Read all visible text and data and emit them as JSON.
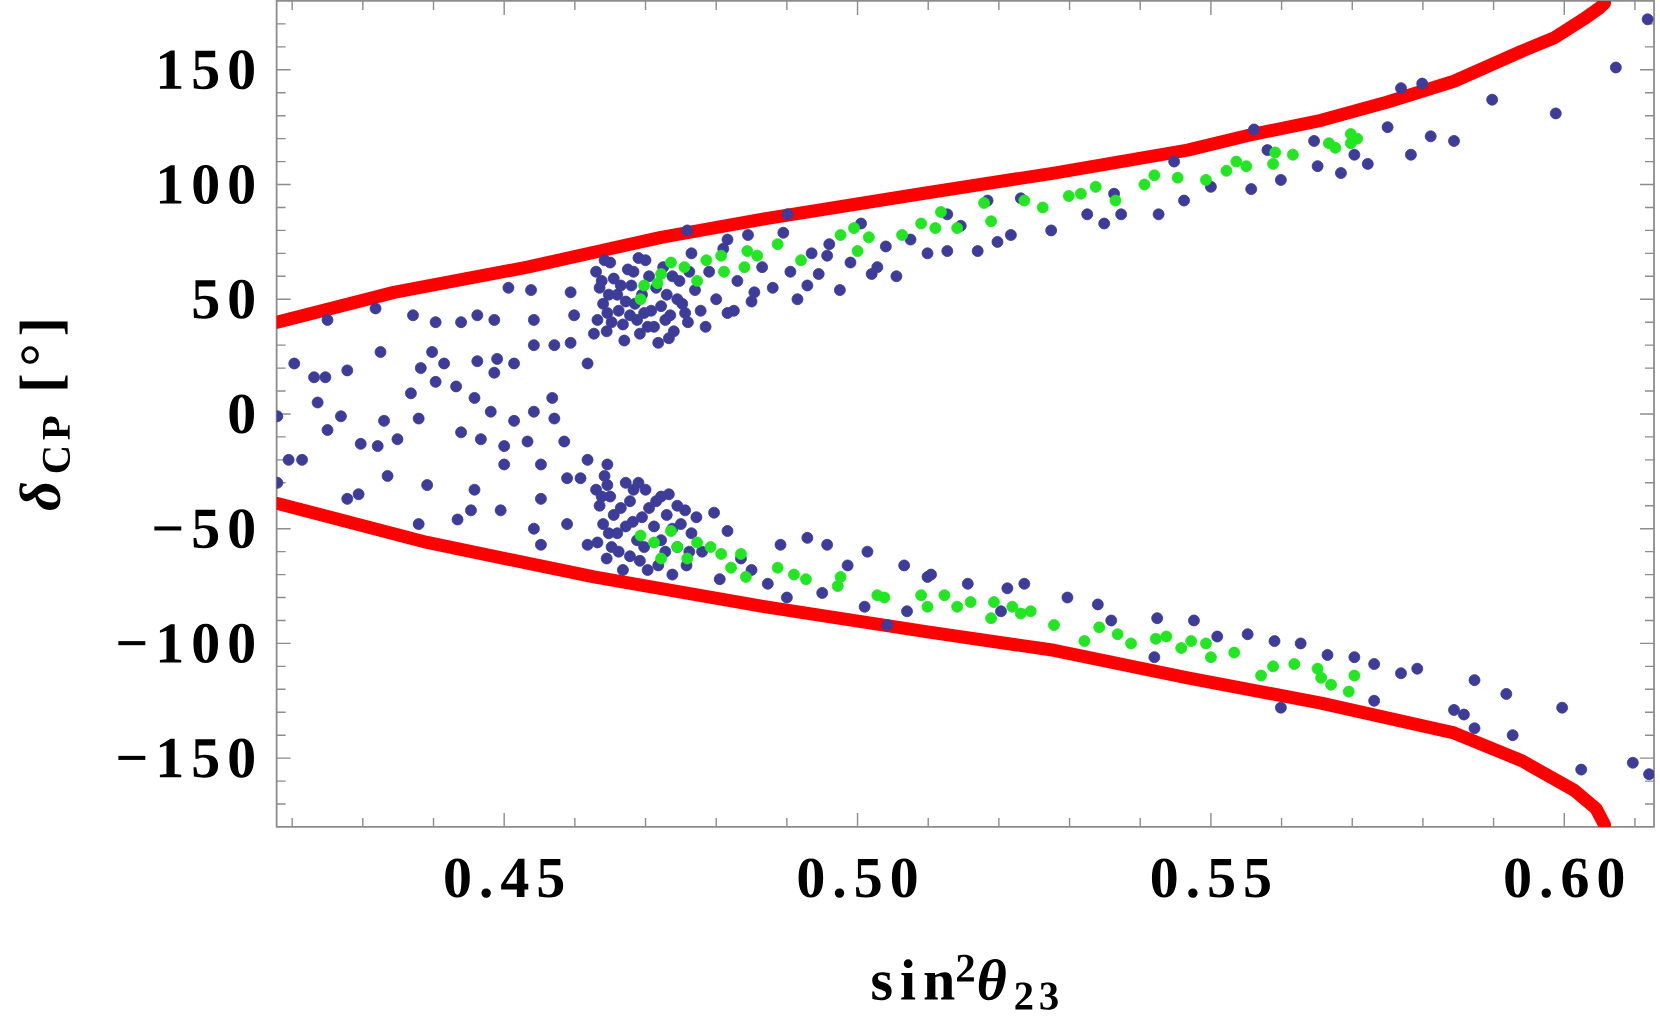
{
  "chart_data": {
    "type": "scatter",
    "xlabel": "sin$^{2}$*θ*$_{23}$",
    "ylabel": "*δ*$_{CP}$ [°]",
    "xlim": [
      0.4178,
      0.6127
    ],
    "ylim": [
      -180,
      180
    ],
    "xticks": [
      {
        "value": 0.42,
        "label": null
      },
      {
        "value": 0.43,
        "label": null
      },
      {
        "value": 0.44,
        "label": null
      },
      0.45,
      {
        "value": 0.46,
        "label": null
      },
      {
        "value": 0.47,
        "label": null
      },
      {
        "value": 0.48,
        "label": null
      },
      {
        "value": 0.49,
        "label": null
      },
      {
        "value": 0.5,
        "label": "0.50"
      },
      {
        "value": 0.51,
        "label": null
      },
      {
        "value": 0.52,
        "label": null
      },
      {
        "value": 0.53,
        "label": null
      },
      {
        "value": 0.54,
        "label": null
      },
      0.55,
      {
        "value": 0.56,
        "label": null
      },
      {
        "value": 0.57,
        "label": null
      },
      {
        "value": 0.58,
        "label": null
      },
      {
        "value": 0.59,
        "label": null
      },
      {
        "value": 0.6,
        "label": "0.60"
      },
      {
        "value": 0.61,
        "label": null
      }
    ],
    "yticks": [
      {
        "value": -170,
        "label": null
      },
      {
        "value": -160,
        "label": null
      },
      {
        "value": -150,
        "label": "−150"
      },
      {
        "value": -140,
        "label": null
      },
      {
        "value": -130,
        "label": null
      },
      {
        "value": -120,
        "label": null
      },
      {
        "value": -110,
        "label": null
      },
      {
        "value": -100,
        "label": "−100"
      },
      {
        "value": -90,
        "label": null
      },
      {
        "value": -80,
        "label": null
      },
      {
        "value": -70,
        "label": null
      },
      {
        "value": -60,
        "label": null
      },
      {
        "value": -50,
        "label": "−50"
      },
      {
        "value": -40,
        "label": null
      },
      {
        "value": -30,
        "label": null
      },
      {
        "value": -20,
        "label": null
      },
      {
        "value": -10,
        "label": null
      },
      0,
      {
        "value": 10,
        "label": null
      },
      {
        "value": 20,
        "label": null
      },
      {
        "value": 30,
        "label": null
      },
      {
        "value": 40,
        "label": null
      },
      50,
      {
        "value": 60,
        "label": null
      },
      {
        "value": 70,
        "label": null
      },
      {
        "value": 80,
        "label": null
      },
      {
        "value": 90,
        "label": null
      },
      100,
      {
        "value": 110,
        "label": null
      },
      {
        "value": 120,
        "label": null
      },
      {
        "value": 130,
        "label": null
      },
      {
        "value": 140,
        "label": null
      },
      150,
      {
        "value": 160,
        "label": null
      },
      {
        "value": 170,
        "label": null
      }
    ],
    "marker": "circle",
    "series": [
      {
        "type": "line",
        "marker": "none",
        "color": "#ff0000",
        "x": [
          0.4179,
          0.4344,
          0.4533,
          0.4722,
          0.4868,
          0.509,
          0.5278,
          0.5467,
          0.5561,
          0.5656,
          0.575,
          0.5844,
          0.5939,
          0.5986,
          0.6027,
          0.605,
          0.6057
        ],
        "values": [
          40,
          53,
          64,
          77,
          85,
          96,
          105,
          115,
          122,
          128,
          136,
          145,
          158,
          164,
          172,
          177,
          179
        ]
      },
      {
        "type": "line",
        "marker": "none",
        "color": "#ff0000",
        "x": [
          0.4179,
          0.4391,
          0.4627,
          0.4868,
          0.5099,
          0.5278,
          0.5467,
          0.5656,
          0.5844,
          0.5939,
          0.6014,
          0.6045,
          0.6057
        ],
        "values": [
          -39,
          -56,
          -71,
          -84,
          -95,
          -103,
          -115,
          -126,
          -139,
          -151,
          -164,
          -172,
          -179
        ]
      },
      {
        "color": "#3d3d99",
        "x": [
          0.425,
          0.4318,
          0.4371,
          0.4403,
          0.4439,
          0.4462,
          0.4486,
          0.4506,
          0.4538,
          0.4594,
          0.4203,
          0.4231,
          0.4247,
          0.4236,
          0.4269,
          0.425,
          0.4179,
          0.4195,
          0.4214,
          0.4179,
          0.4278,
          0.4325,
          0.4382,
          0.4398,
          0.4415,
          0.4403,
          0.4432,
          0.4368,
          0.4379,
          0.433,
          0.4349,
          0.4321,
          0.4297,
          0.4335,
          0.4462,
          0.4486,
          0.449,
          0.4514,
          0.4542,
          0.4571,
          0.4594,
          0.4618,
          0.4458,
          0.4481,
          0.4514,
          0.4542,
          0.4571,
          0.4568,
          0.4439,
          0.4467,
          0.45,
          0.4533,
          0.4552,
          0.4585,
          0.4589,
          0.4618,
          0.4646,
          0.4542,
          0.4599,
          0.4627,
          0.4646,
          0.463,
          0.4635,
          0.464,
          0.4632,
          0.4645,
          0.465,
          0.4655,
          0.466,
          0.4662,
          0.4668,
          0.467,
          0.4675,
          0.468,
          0.4685,
          0.4688,
          0.4692,
          0.47,
          0.4705,
          0.4708,
          0.4712,
          0.4718,
          0.4725,
          0.473,
          0.4735,
          0.474,
          0.4748,
          0.4752,
          0.476,
          0.4765,
          0.477,
          0.4778,
          0.4785,
          0.479,
          0.48,
          0.481,
          0.4825,
          0.483,
          0.4845,
          0.485,
          0.4865,
          0.488,
          0.4895,
          0.4905,
          0.4915,
          0.4935,
          0.4945,
          0.496,
          0.4975,
          0.499,
          0.5005,
          0.502,
          0.504,
          0.5055,
          0.5075,
          0.4816,
          0.4854,
          0.4929,
          0.4957,
          0.5028,
          0.5099,
          0.4901,
          0.4759,
          0.4816,
          0.5127,
          0.517,
          0.5198,
          0.5217,
          0.5274,
          0.5325,
          0.5349,
          0.5373,
          0.5426,
          0.5462,
          0.55,
          0.5557,
          0.5599,
          0.5651,
          0.5684,
          0.5722,
          0.575,
          0.5783,
          0.5811,
          0.5844,
          0.5769,
          0.5799,
          0.5898,
          0.5988,
          0.6073,
          0.6118,
          0.5448,
          0.5561,
          0.558,
          0.5646,
          0.5703,
          0.5231,
          0.5184,
          0.5127,
          0.5363,
          0.5146,
          0.4278,
          0.4294,
          0.4379,
          0.4391,
          0.4434,
          0.4453,
          0.4458,
          0.4495,
          0.45,
          0.4542,
          0.4552,
          0.4552,
          0.4589,
          0.4618,
          0.4608,
          0.4646,
          0.463,
          0.4635,
          0.464,
          0.4632,
          0.4645,
          0.465,
          0.4655,
          0.466,
          0.4662,
          0.4668,
          0.4672,
          0.4678,
          0.4682,
          0.4688,
          0.4692,
          0.47,
          0.4705,
          0.4712,
          0.4718,
          0.4722,
          0.473,
          0.4738,
          0.4745,
          0.475,
          0.4758,
          0.4765,
          0.4772,
          0.478,
          0.4797,
          0.4816,
          0.4835,
          0.4873,
          0.4891,
          0.4929,
          0.4957,
          0.4986,
          0.5014,
          0.5042,
          0.5066,
          0.5099,
          0.4805,
          0.485,
          0.49,
          0.495,
          0.501,
          0.507,
          0.5104,
          0.5156,
          0.5212,
          0.5236,
          0.5203,
          0.5297,
          0.534,
          0.5359,
          0.5424,
          0.5476,
          0.542,
          0.5509,
          0.5552,
          0.559,
          0.5627,
          0.5665,
          0.5703,
          0.5731,
          0.5769,
          0.5792,
          0.5731,
          0.5599,
          0.5844,
          0.5873,
          0.5858,
          0.5873,
          0.5918,
          0.5927,
          0.5997,
          0.6024,
          0.6097,
          0.612,
          0.4638,
          0.4648,
          0.4652,
          0.4665,
          0.4672,
          0.4678,
          0.4683,
          0.4695,
          0.4698,
          0.4703,
          0.4715,
          0.4722,
          0.4728,
          0.4738,
          0.4745,
          0.4756,
          0.4762,
          0.4642,
          0.469,
          0.4733,
          0.4638,
          0.4648,
          0.4652,
          0.4665,
          0.4672,
          0.4678,
          0.4683,
          0.4695,
          0.4698,
          0.4703,
          0.4715,
          0.4722,
          0.4728,
          0.4738,
          0.4745,
          0.4756,
          0.4762,
          0.4642,
          0.469,
          0.4733
        ],
        "values": [
          41,
          46,
          43,
          40,
          40,
          43,
          41,
          55,
          54,
          53,
          22,
          16,
          16,
          5,
          -1,
          -7,
          -1,
          -20,
          -20,
          -30,
          19,
          27,
          20,
          27,
          22,
          14,
          12,
          9,
          -2,
          -3,
          -11,
          -14,
          -13,
          -27,
          23,
          18,
          24,
          22,
          30,
          30,
          31,
          22,
          7,
          1,
          -3,
          1,
          -2,
          7,
          -8,
          -11,
          -14,
          -12,
          -22,
          -12,
          -28,
          -20,
          -22,
          41,
          43,
          35,
          44,
          62,
          55,
          48,
          41,
          36,
          66,
          59,
          52,
          45,
          39,
          32,
          63,
          56,
          48,
          41,
          35,
          67,
          60,
          45,
          38,
          31,
          64,
          52,
          43,
          36,
          58,
          48,
          40,
          70,
          54,
          45,
          38,
          62,
          50,
          72,
          45,
          58,
          78,
          49,
          64,
          55,
          79,
          62,
          50,
          70,
          61,
          74,
          54,
          66,
          83,
          61,
          73,
          60,
          76,
          44,
          53,
          56,
          69,
          64,
          70,
          87,
          80,
          76,
          71,
          71,
          75,
          78,
          80,
          87,
          83,
          87,
          87,
          93,
          99,
          98,
          102,
          108,
          105,
          109,
          125,
          113,
          121,
          119,
          142,
          144,
          137,
          131,
          151,
          172,
          110,
          124,
          115,
          119,
          113,
          94,
          93,
          87,
          96,
          82,
          -37,
          -35,
          -48,
          -31,
          -46,
          -42,
          -33,
          -42,
          -22,
          -50,
          -57,
          -37,
          -48,
          -57,
          -28,
          -31,
          -33,
          -40,
          -48,
          -56,
          -63,
          -36,
          -44,
          -52,
          -60,
          -68,
          -30,
          -38,
          -47,
          -55,
          -64,
          -33,
          -41,
          -49,
          -66,
          -36,
          -44,
          -70,
          -40,
          -48,
          -66,
          -52,
          -45,
          -60,
          -43,
          -51,
          -63,
          -74,
          -57,
          -54,
          -57,
          -66,
          -60,
          -92,
          -66,
          -71,
          -72,
          -68,
          -80,
          -78,
          -84,
          -86,
          -70,
          -74,
          -76,
          -74,
          -86,
          -80,
          -83,
          -90,
          -89,
          -90,
          -106,
          -97,
          -96,
          -99,
          -100,
          -105,
          -106,
          -109,
          -113,
          -111,
          -125,
          -128,
          -129,
          -116,
          -131,
          -137,
          -122,
          -140,
          -128,
          -155,
          -152,
          -157,
          58,
          52,
          40,
          56,
          49,
          43,
          62,
          52,
          44,
          38,
          55,
          47,
          41,
          60,
          50,
          44,
          62,
          67,
          68,
          33,
          -36,
          -52,
          -58,
          -41,
          -49,
          -62,
          -33,
          -45,
          -58,
          -68,
          -38,
          -55,
          -60,
          -50,
          -58,
          -42,
          -60,
          -27,
          -30,
          -35
        ]
      },
      {
        "color": "#22e622",
        "x": [
          0.4693,
          0.4698,
          0.4717,
          0.4722,
          0.4736,
          0.4755,
          0.4773,
          0.4786,
          0.4807,
          0.4811,
          0.4844,
          0.4858,
          0.484,
          0.4887,
          0.492,
          0.4976,
          0.4995,
          0.5016,
          0.5,
          0.5063,
          0.509,
          0.5118,
          0.5141,
          0.511,
          0.5179,
          0.5189,
          0.5236,
          0.5262,
          0.5299,
          0.5316,
          0.5337,
          0.5365,
          0.5406,
          0.542,
          0.5453,
          0.5493,
          0.5522,
          0.5536,
          0.555,
          0.5588,
          0.5591,
          0.5616,
          0.5667,
          0.5676,
          0.5698,
          0.5707,
          0.5698,
          0.4693,
          0.4712,
          0.4722,
          0.4736,
          0.4745,
          0.4759,
          0.4773,
          0.4792,
          0.4807,
          0.4835,
          0.4821,
          0.4842,
          0.4887,
          0.491,
          0.4927,
          0.4972,
          0.4976,
          0.5028,
          0.5038,
          0.509,
          0.5099,
          0.5123,
          0.5141,
          0.516,
          0.5193,
          0.5189,
          0.5219,
          0.5231,
          0.5245,
          0.5278,
          0.5321,
          0.5342,
          0.5368,
          0.5387,
          0.5422,
          0.5437,
          0.5458,
          0.5472,
          0.5493,
          0.55,
          0.5533,
          0.5571,
          0.5588,
          0.5618,
          0.5651,
          0.567,
          0.5695,
          0.5703,
          0.5656
        ],
        "values": [
          50,
          56,
          57,
          61,
          66,
          64,
          58,
          67,
          69,
          62,
          71,
          69,
          64,
          74,
          67,
          78,
          81,
          77,
          71,
          78,
          83,
          88,
          81,
          81,
          92,
          84,
          93,
          90,
          95,
          96,
          99,
          93,
          100,
          104,
          103,
          102,
          106,
          110,
          108,
          109,
          114,
          113,
          118,
          116,
          118,
          120,
          122,
          -53,
          -56,
          -63,
          -51,
          -58,
          -63,
          -56,
          -58,
          -61,
          -61,
          -67,
          -71,
          -67,
          -70,
          -72,
          -75,
          -71,
          -79,
          -80,
          -79,
          -84,
          -79,
          -84,
          -82,
          -82,
          -89,
          -84,
          -87,
          -86,
          -92,
          -99,
          -93,
          -96,
          -100,
          -98,
          -97,
          -102,
          -99,
          -100,
          -106,
          -104,
          -114,
          -110,
          -109,
          -111,
          -118,
          -121,
          -114,
          -115
        ]
      }
    ]
  }
}
